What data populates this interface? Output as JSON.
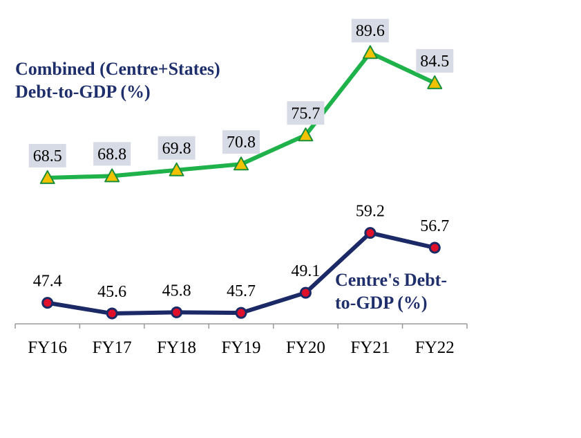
{
  "chart_data": {
    "type": "line",
    "categories": [
      "FY16",
      "FY17",
      "FY18",
      "FY19",
      "FY20",
      "FY21",
      "FY22"
    ],
    "ylim": [
      40,
      95
    ],
    "grid": false,
    "series": [
      {
        "name": "Combined (Centre+States) Debt-to-GDP (%)",
        "name_lines": [
          "Combined (Centre+States)",
          "Debt-to-GDP (%)"
        ],
        "values": [
          68.5,
          68.8,
          69.8,
          70.8,
          75.7,
          89.6,
          84.5
        ],
        "labels": [
          "68.5",
          "68.8",
          "69.8",
          "70.8",
          "75.7",
          "89.6",
          "84.5"
        ],
        "line_color": "#1fb24a",
        "marker": "triangle",
        "marker_fill": "#f2c200",
        "marker_stroke": "#1a8f3a",
        "label_box_color": "#d7dbe6"
      },
      {
        "name": "Centre's Debt-to-GDP (%)",
        "name_lines": [
          "Centre's Debt-",
          "to-GDP (%)"
        ],
        "values": [
          47.4,
          45.6,
          45.8,
          45.7,
          49.1,
          59.2,
          56.7
        ],
        "labels": [
          "47.4",
          "45.6",
          "45.8",
          "45.7",
          "49.1",
          "59.2",
          "56.7"
        ],
        "line_color": "#1b2a66",
        "marker": "circle",
        "marker_fill": "#e0102a",
        "marker_stroke": "#1b2a66"
      }
    ],
    "title_color": "#1f2f6b"
  }
}
